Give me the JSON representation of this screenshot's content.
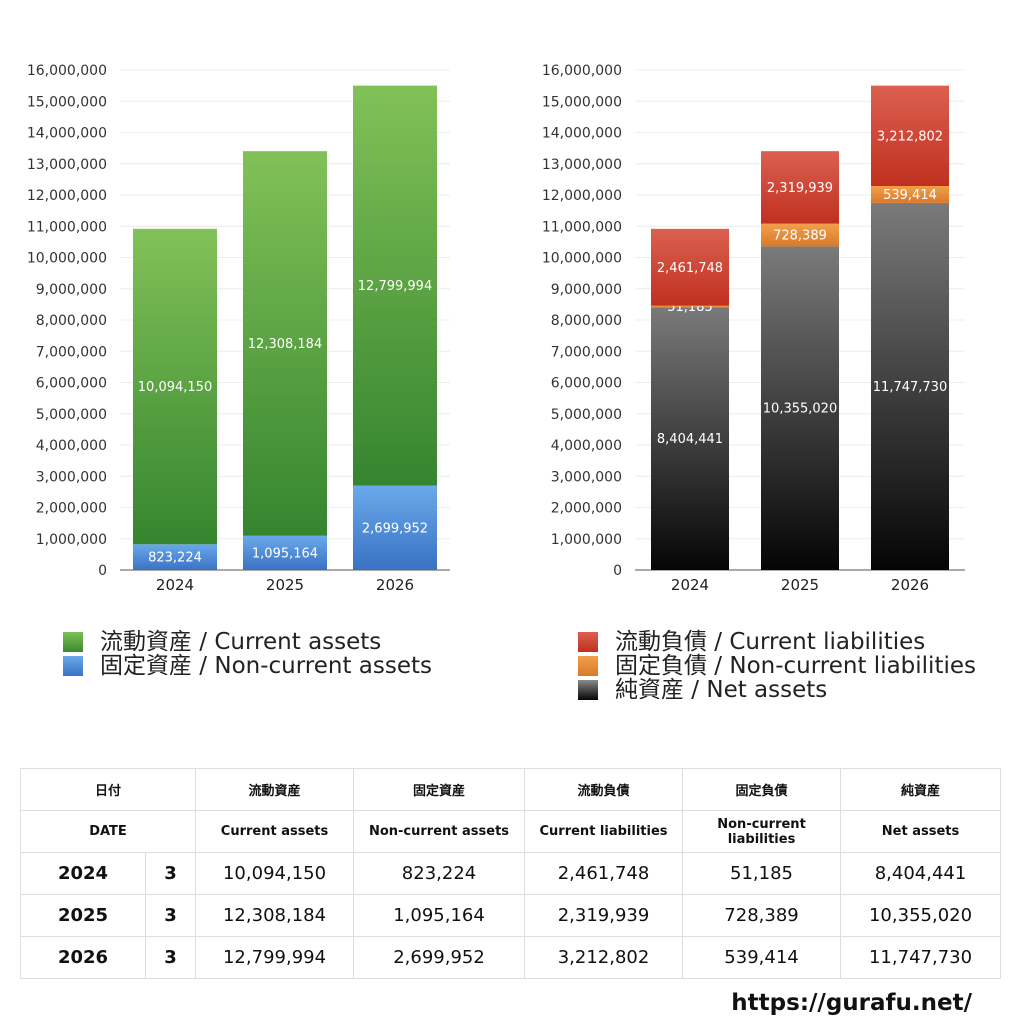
{
  "chart_data": [
    {
      "type": "bar",
      "stacked": true,
      "categories": [
        "2024",
        "2025",
        "2026"
      ],
      "ylim": [
        0,
        16000000
      ],
      "yticks": [
        "0",
        "1,000,000",
        "2,000,000",
        "3,000,000",
        "4,000,000",
        "5,000,000",
        "6,000,000",
        "7,000,000",
        "8,000,000",
        "9,000,000",
        "10,000,000",
        "11,000,000",
        "12,000,000",
        "13,000,000",
        "14,000,000",
        "15,000,000",
        "16,000,000"
      ],
      "grid": true,
      "series": [
        {
          "name": "固定資産 / Non-current assets",
          "key": "non_current_assets",
          "color": "#4a86d8",
          "values": [
            823224,
            1095164,
            2699952
          ],
          "labels": [
            "823,224",
            "1,095,164",
            "2,699,952"
          ]
        },
        {
          "name": "流動資産 / Current assets",
          "key": "current_assets",
          "color": "#5fa843",
          "values": [
            10094150,
            12308184,
            12799994
          ],
          "labels": [
            "10,094,150",
            "12,308,184",
            "12,799,994"
          ]
        }
      ]
    },
    {
      "type": "bar",
      "stacked": true,
      "categories": [
        "2024",
        "2025",
        "2026"
      ],
      "ylim": [
        0,
        16000000
      ],
      "yticks": [
        "0",
        "1,000,000",
        "2,000,000",
        "3,000,000",
        "4,000,000",
        "5,000,000",
        "6,000,000",
        "7,000,000",
        "8,000,000",
        "9,000,000",
        "10,000,000",
        "11,000,000",
        "12,000,000",
        "13,000,000",
        "14,000,000",
        "15,000,000",
        "16,000,000"
      ],
      "grid": true,
      "series": [
        {
          "name": "純資産 / Net assets",
          "key": "net_assets",
          "color": "#3a3a3a",
          "values": [
            8404441,
            10355020,
            11747730
          ],
          "labels": [
            "8,404,441",
            "10,355,020",
            "11,747,730"
          ]
        },
        {
          "name": "固定負債 / Non-current liabilities",
          "key": "non_current_liabilities",
          "color": "#e8882f",
          "values": [
            51185,
            728389,
            539414
          ],
          "labels": [
            "51,185",
            "728,389",
            "539,414"
          ]
        },
        {
          "name": "流動負債 / Current liabilities",
          "key": "current_liabilities",
          "color": "#d04a38",
          "values": [
            2461748,
            2319939,
            3212802
          ],
          "labels": [
            "2,461,748",
            "2,319,939",
            "3,212,802"
          ]
        }
      ]
    }
  ],
  "legend_left": [
    {
      "label": "流動資産 / Current assets",
      "color": "#5fa843"
    },
    {
      "label": "固定資産 / Non-current assets",
      "color": "#4a86d8"
    }
  ],
  "legend_right": [
    {
      "label": "流動負債 / Current liabilities",
      "color": "#d04a38"
    },
    {
      "label": "固定負債 / Non-current liabilities",
      "color": "#e8882f"
    },
    {
      "label": "純資産 / Net assets",
      "color": "#2a2a2a"
    }
  ],
  "table": {
    "header_jp": [
      "日付",
      "",
      "流動資産",
      "固定資産",
      "流動負債",
      "固定負債",
      "純資産"
    ],
    "header_en": [
      "DATE",
      "",
      "Current assets",
      "Non-current assets",
      "Current liabilities",
      "Non-current liabilities",
      "Net assets"
    ],
    "rows": [
      [
        "2024",
        "3",
        "10,094,150",
        "823,224",
        "2,461,748",
        "51,185",
        "8,404,441"
      ],
      [
        "2025",
        "3",
        "12,308,184",
        "1,095,164",
        "2,319,939",
        "728,389",
        "10,355,020"
      ],
      [
        "2026",
        "3",
        "12,799,994",
        "2,699,952",
        "3,212,802",
        "539,414",
        "11,747,730"
      ]
    ]
  },
  "site_url": "https://gurafu.net/"
}
